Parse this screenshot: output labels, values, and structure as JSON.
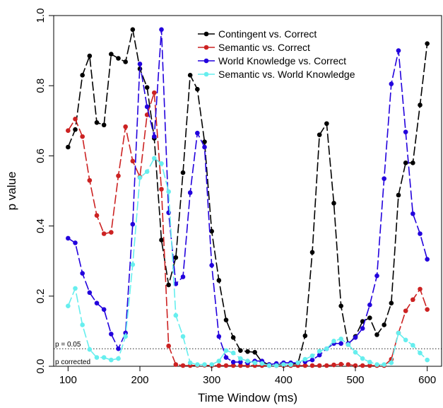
{
  "chart_data": {
    "type": "line",
    "xlabel": "Time Window (ms)",
    "ylabel": "p value",
    "xlim": [
      80,
      620
    ],
    "ylim": [
      0,
      1
    ],
    "x_ticks": [
      100,
      200,
      300,
      400,
      500,
      600
    ],
    "y_ticks": [
      0.0,
      0.2,
      0.4,
      0.6,
      0.8,
      1.0
    ],
    "y_tick_labels": [
      "0.0",
      "0.2",
      "0.4",
      "0.6",
      "0.8",
      "1.0"
    ],
    "legend_position": "top-right",
    "x": [
      100,
      110,
      120,
      130,
      140,
      150,
      160,
      170,
      180,
      190,
      200,
      210,
      220,
      230,
      240,
      250,
      260,
      270,
      280,
      290,
      300,
      310,
      320,
      330,
      340,
      350,
      360,
      370,
      380,
      390,
      400,
      410,
      420,
      430,
      440,
      450,
      460,
      470,
      480,
      490,
      500,
      510,
      520,
      530,
      540,
      550,
      560,
      570,
      580,
      590,
      600
    ],
    "series": [
      {
        "name": "Contingent vs. Correct",
        "color": "#000000",
        "values": [
          0.625,
          0.675,
          0.83,
          0.885,
          0.695,
          0.688,
          0.89,
          0.878,
          0.868,
          0.96,
          0.848,
          0.795,
          0.65,
          0.36,
          0.232,
          0.31,
          0.552,
          0.83,
          0.79,
          0.64,
          0.385,
          0.245,
          0.132,
          0.082,
          0.045,
          0.042,
          0.04,
          0.012,
          0.005,
          0.005,
          0.005,
          0.005,
          0.008,
          0.087,
          0.325,
          0.66,
          0.692,
          0.465,
          0.172,
          0.062,
          0.085,
          0.128,
          0.138,
          0.09,
          0.118,
          0.18,
          0.488,
          0.58,
          0.58,
          0.745,
          0.92
        ]
      },
      {
        "name": "Semantic vs. Correct",
        "color": "#cc2222",
        "values": [
          0.672,
          0.705,
          0.655,
          0.53,
          0.43,
          0.378,
          0.382,
          0.543,
          0.683,
          0.585,
          0.54,
          0.717,
          0.78,
          0.505,
          0.058,
          0.005,
          0.002,
          0.002,
          0.003,
          0.003,
          0.002,
          0.002,
          0.002,
          0.002,
          0.002,
          0.002,
          0.002,
          0.002,
          0.002,
          0.002,
          0.002,
          0.002,
          0.002,
          0.002,
          0.002,
          0.002,
          0.002,
          0.004,
          0.006,
          0.005,
          0.002,
          0.002,
          0.002,
          0.002,
          0.002,
          0.02,
          0.095,
          0.158,
          0.19,
          0.22,
          0.162
        ]
      },
      {
        "name": "World Knowledge vs. Correct",
        "color": "#2200dd",
        "values": [
          0.365,
          0.352,
          0.265,
          0.21,
          0.18,
          0.162,
          0.092,
          0.05,
          0.095,
          0.405,
          0.862,
          0.74,
          0.655,
          0.96,
          0.438,
          0.235,
          0.255,
          0.495,
          0.665,
          0.625,
          0.288,
          0.085,
          0.025,
          0.012,
          0.012,
          0.01,
          0.015,
          0.015,
          0.005,
          0.008,
          0.01,
          0.01,
          0.01,
          0.013,
          0.018,
          0.032,
          0.05,
          0.065,
          0.065,
          0.065,
          0.082,
          0.108,
          0.175,
          0.258,
          0.535,
          0.805,
          0.9,
          0.668,
          0.435,
          0.378,
          0.305
        ]
      },
      {
        "name": "Semantic vs. World Knowledge",
        "color": "#66eeee",
        "values": [
          0.172,
          0.222,
          0.118,
          0.048,
          0.025,
          0.025,
          0.018,
          0.022,
          0.085,
          0.29,
          0.538,
          0.555,
          0.593,
          0.578,
          0.498,
          0.145,
          0.085,
          0.01,
          0.005,
          0.005,
          0.005,
          0.015,
          0.045,
          0.038,
          0.022,
          0.015,
          0.01,
          0.008,
          0.002,
          0.002,
          0.005,
          0.005,
          0.01,
          0.02,
          0.03,
          0.043,
          0.05,
          0.072,
          0.078,
          0.062,
          0.04,
          0.022,
          0.012,
          0.005,
          0.005,
          0.01,
          0.095,
          0.075,
          0.06,
          0.038,
          0.018
        ]
      }
    ],
    "annotations": [
      {
        "text": "p = 0.05",
        "y": 0.05
      },
      {
        "text": "p corrected",
        "y": 0.0
      }
    ]
  }
}
